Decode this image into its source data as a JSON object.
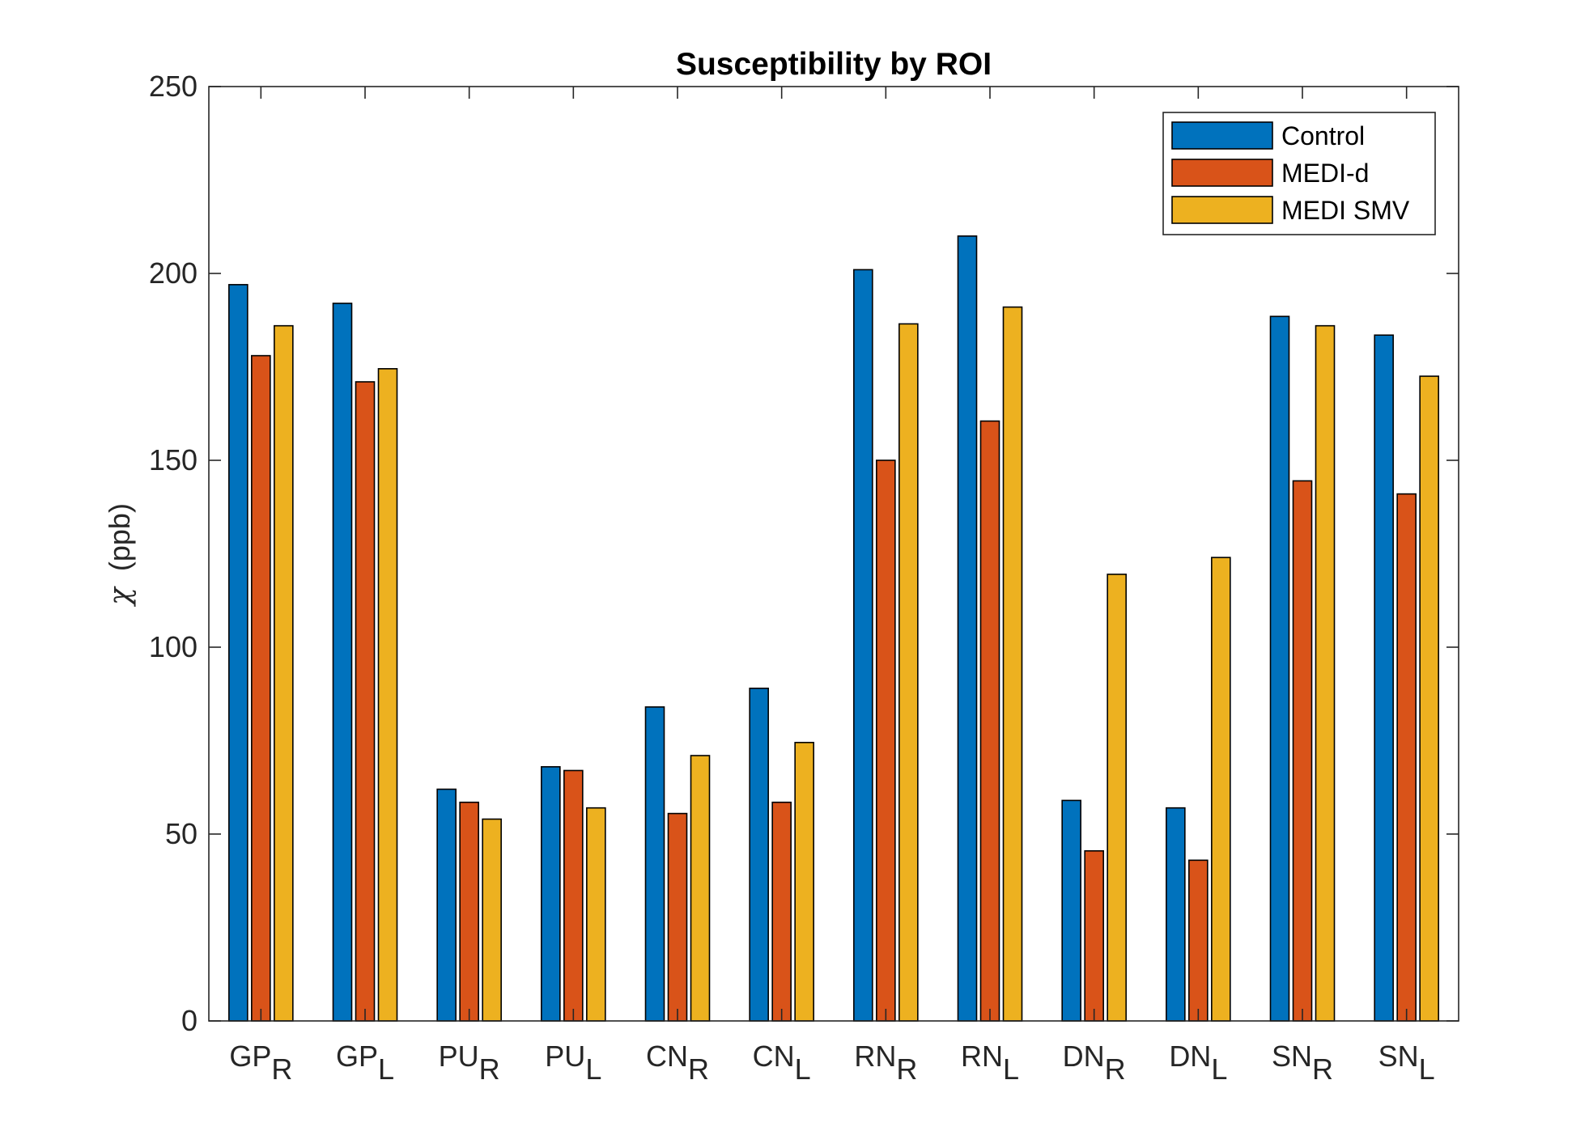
{
  "chart_data": {
    "type": "bar",
    "title": "Susceptibility by ROI",
    "xlabel": "",
    "ylabel": {
      "symbol": "χ",
      "unit": "(ppb)"
    },
    "ylim": [
      0,
      250
    ],
    "yticks": [
      0,
      50,
      100,
      150,
      200,
      250
    ],
    "grid": false,
    "legend_position": "top-right",
    "categories": [
      {
        "base": "GP",
        "sub": "R"
      },
      {
        "base": "GP",
        "sub": "L"
      },
      {
        "base": "PU",
        "sub": "R"
      },
      {
        "base": "PU",
        "sub": "L"
      },
      {
        "base": "CN",
        "sub": "R"
      },
      {
        "base": "CN",
        "sub": "L"
      },
      {
        "base": "RN",
        "sub": "R"
      },
      {
        "base": "RN",
        "sub": "L"
      },
      {
        "base": "DN",
        "sub": "R"
      },
      {
        "base": "DN",
        "sub": "L"
      },
      {
        "base": "SN",
        "sub": "R"
      },
      {
        "base": "SN",
        "sub": "L"
      }
    ],
    "series": [
      {
        "name": "Control",
        "color": "#0072BD",
        "values": [
          197,
          192,
          62,
          68,
          84,
          89,
          201,
          210,
          59,
          57,
          188.5,
          183.5
        ]
      },
      {
        "name": "MEDI-d",
        "color": "#D95319",
        "values": [
          178,
          171,
          58.5,
          67,
          55.5,
          58.5,
          150,
          160.5,
          45.5,
          43,
          144.5,
          141
        ]
      },
      {
        "name": "MEDI SMV",
        "color": "#EDB120",
        "values": [
          186,
          174.5,
          54,
          57,
          71,
          74.5,
          186.5,
          191,
          119.5,
          124,
          186,
          172.5
        ]
      }
    ]
  }
}
